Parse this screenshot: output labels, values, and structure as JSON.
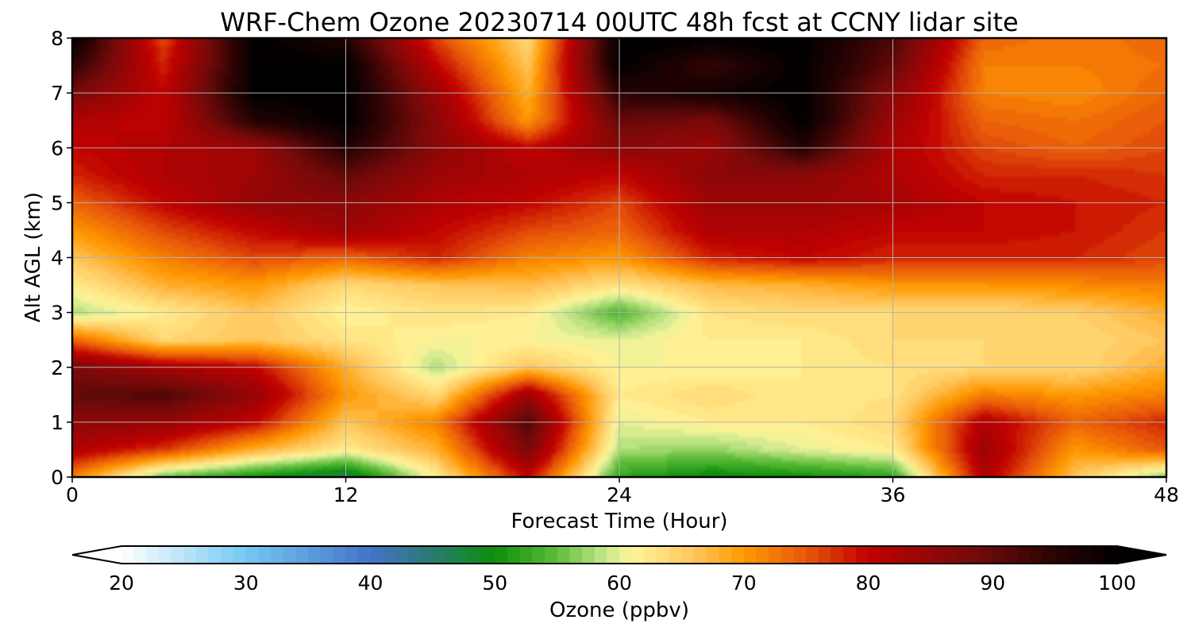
{
  "chart_data": {
    "type": "heatmap",
    "title": "WRF-Chem Ozone  20230714 00UTC 48h fcst at CCNY lidar site",
    "xlabel": "Forecast Time (Hour)",
    "ylabel": "Alt AGL (km)",
    "xlim": [
      0,
      48
    ],
    "ylim": [
      0,
      8
    ],
    "x_ticks": [
      "0",
      "12",
      "24",
      "36",
      "48"
    ],
    "y_ticks": [
      "0",
      "1",
      "2",
      "3",
      "4",
      "5",
      "6",
      "7",
      "8"
    ],
    "grid": true,
    "x_hours": [
      0,
      4,
      8,
      12,
      16,
      20,
      24,
      28,
      32,
      36,
      40,
      44,
      48
    ],
    "y_km": [
      0,
      0.5,
      1,
      1.5,
      2,
      2.5,
      3,
      3.5,
      4,
      4.5,
      5,
      5.5,
      6,
      6.5,
      7,
      7.5,
      8
    ],
    "z_ppbv": [
      [
        72,
        55,
        50,
        46,
        62,
        80,
        52,
        49,
        50,
        52,
        82,
        66,
        56
      ],
      [
        82,
        77,
        68,
        62,
        68,
        88,
        58,
        57,
        60,
        62,
        84,
        70,
        75
      ],
      [
        86,
        85,
        80,
        66,
        72,
        92,
        60,
        62,
        62,
        64,
        82,
        74,
        78
      ],
      [
        90,
        92,
        85,
        70,
        64,
        84,
        62,
        64,
        62,
        63,
        72,
        70,
        72
      ],
      [
        88,
        83,
        80,
        68,
        58,
        66,
        61,
        61,
        62,
        63,
        64,
        64,
        68
      ],
      [
        74,
        64,
        66,
        63,
        61,
        61,
        60,
        62,
        62,
        64,
        64,
        64,
        66
      ],
      [
        58,
        62,
        66,
        61,
        63,
        62,
        54,
        63,
        64,
        64,
        64,
        65,
        68
      ],
      [
        62,
        68,
        70,
        64,
        66,
        67,
        63,
        67,
        68,
        70,
        70,
        71,
        72
      ],
      [
        66,
        72,
        76,
        74,
        78,
        72,
        70,
        78,
        80,
        78,
        78,
        78,
        76
      ],
      [
        70,
        76,
        80,
        84,
        80,
        76,
        74,
        82,
        82,
        80,
        80,
        79,
        77
      ],
      [
        74,
        80,
        85,
        86,
        82,
        80,
        76,
        84,
        84,
        83,
        80,
        79,
        78
      ],
      [
        78,
        82,
        84,
        90,
        84,
        82,
        80,
        86,
        86,
        82,
        78,
        78,
        77
      ],
      [
        80,
        82,
        84,
        96,
        86,
        80,
        86,
        84,
        96,
        82,
        76,
        74,
        76
      ],
      [
        82,
        80,
        96,
        100,
        86,
        70,
        90,
        88,
        100,
        84,
        74,
        73,
        75
      ],
      [
        88,
        80,
        100,
        100,
        84,
        68,
        95,
        98,
        100,
        86,
        72,
        71,
        74
      ],
      [
        95,
        78,
        100,
        100,
        80,
        66,
        100,
        94,
        100,
        90,
        72,
        72,
        73
      ],
      [
        100,
        76,
        100,
        96,
        76,
        64,
        100,
        100,
        100,
        92,
        74,
        72,
        74
      ]
    ],
    "colorbar": {
      "label": "Ozone  (ppbv)",
      "ticks": [
        "20",
        "30",
        "40",
        "50",
        "60",
        "70",
        "80",
        "90",
        "100"
      ],
      "range": [
        20,
        100
      ],
      "extend": "both",
      "colors": [
        {
          "v": 20,
          "c": "#ffffff"
        },
        {
          "v": 30,
          "c": "#74c8f2"
        },
        {
          "v": 40,
          "c": "#4373c9"
        },
        {
          "v": 45,
          "c": "#2a7a70"
        },
        {
          "v": 50,
          "c": "#0a8f0a"
        },
        {
          "v": 55,
          "c": "#5fbd3a"
        },
        {
          "v": 59,
          "c": "#c9e88c"
        },
        {
          "v": 61,
          "c": "#fff59a"
        },
        {
          "v": 66,
          "c": "#ffc65c"
        },
        {
          "v": 70,
          "c": "#ff9800"
        },
        {
          "v": 75,
          "c": "#e8580a"
        },
        {
          "v": 80,
          "c": "#c00000"
        },
        {
          "v": 88,
          "c": "#7a0a0a"
        },
        {
          "v": 95,
          "c": "#2b0303"
        },
        {
          "v": 100,
          "c": "#000000"
        }
      ]
    }
  }
}
